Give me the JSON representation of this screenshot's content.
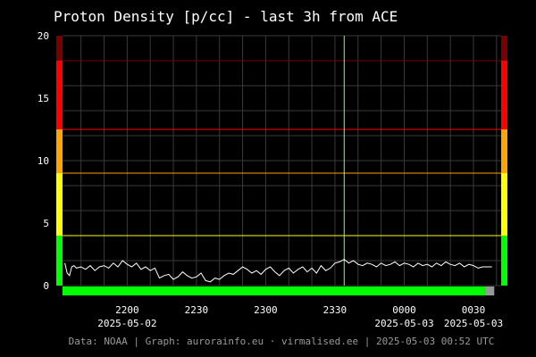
{
  "colors": {
    "background": "#000000",
    "grid": "#3a3a3a",
    "line": "#ffffff",
    "now_marker": "#7dff7d",
    "green": "#00ff00",
    "yellow": "#ffff00",
    "orange": "#ffa500",
    "red": "#ff0000",
    "dark_red": "#7a0000",
    "gap": "#999999"
  },
  "chart_data": {
    "type": "line",
    "title": "Proton Density [p/cc] - last 3h from ACE",
    "ylim": [
      0,
      20
    ],
    "y_ticks": [
      0,
      5,
      10,
      15,
      20
    ],
    "x_range_minutes": [
      -28,
      162
    ],
    "x_ticks": [
      {
        "minute": 0,
        "label": "2200",
        "date": "2025-05-02"
      },
      {
        "minute": 30,
        "label": "2230",
        "date": ""
      },
      {
        "minute": 60,
        "label": "2300",
        "date": ""
      },
      {
        "minute": 90,
        "label": "2330",
        "date": ""
      },
      {
        "minute": 120,
        "label": "0000",
        "date": "2025-05-03"
      },
      {
        "minute": 150,
        "label": "0030",
        "date": "2025-05-03"
      }
    ],
    "now_minute": 94,
    "thresholds": [
      {
        "value": 4,
        "color": "#ffff00"
      },
      {
        "value": 9,
        "color": "#ffa500"
      },
      {
        "value": 12.5,
        "color": "#ff0000"
      },
      {
        "value": 18,
        "color": "#7a0000"
      }
    ],
    "side_bands": [
      {
        "from": 0,
        "to": 4,
        "color": "#00ff00"
      },
      {
        "from": 4,
        "to": 9,
        "color": "#ffff00"
      },
      {
        "from": 9,
        "to": 12.5,
        "color": "#ffa500"
      },
      {
        "from": 12.5,
        "to": 18,
        "color": "#ff0000"
      },
      {
        "from": 18,
        "to": 20,
        "color": "#7a0000"
      }
    ],
    "data_bar": [
      {
        "from": -28,
        "to": 155,
        "color": "#00ff00"
      },
      {
        "from": 155,
        "to": 159,
        "color": "#999999"
      }
    ],
    "series": [
      {
        "x": [
          -27,
          -26,
          -25,
          -24,
          -23,
          -22,
          -20,
          -18,
          -16,
          -14,
          -12,
          -10,
          -8,
          -6,
          -4,
          -2,
          0,
          2,
          4,
          6,
          8,
          10,
          12,
          14,
          16,
          18,
          20,
          22,
          24,
          26,
          28,
          30,
          32,
          34,
          36,
          38,
          40,
          42,
          44,
          46,
          48,
          50,
          52,
          54,
          56,
          58,
          60,
          62,
          64,
          66,
          68,
          70,
          72,
          74,
          76,
          78,
          80,
          82,
          84,
          86,
          88,
          90,
          92,
          94,
          96,
          98,
          100,
          102,
          104,
          106,
          108,
          110,
          112,
          114,
          116,
          118,
          120,
          122,
          124,
          126,
          128,
          130,
          132,
          134,
          136,
          138,
          140,
          142,
          144,
          146,
          148,
          150,
          152,
          154,
          156,
          158
        ],
        "y": [
          1.8,
          1.0,
          0.8,
          1.5,
          1.6,
          1.4,
          1.5,
          1.3,
          1.6,
          1.2,
          1.5,
          1.6,
          1.4,
          1.8,
          1.5,
          2.0,
          1.7,
          1.5,
          1.8,
          1.3,
          1.5,
          1.2,
          1.4,
          0.6,
          0.8,
          0.9,
          0.5,
          0.7,
          1.1,
          0.8,
          0.6,
          0.7,
          1.0,
          0.4,
          0.3,
          0.6,
          0.5,
          0.8,
          1.0,
          0.9,
          1.2,
          1.5,
          1.3,
          1.0,
          1.2,
          0.9,
          1.3,
          1.5,
          1.1,
          0.8,
          1.2,
          1.4,
          1.0,
          1.3,
          1.5,
          1.1,
          1.4,
          1.0,
          1.6,
          1.2,
          1.4,
          1.8,
          1.9,
          2.1,
          1.8,
          2.0,
          1.7,
          1.6,
          1.8,
          1.7,
          1.5,
          1.8,
          1.6,
          1.7,
          1.9,
          1.6,
          1.8,
          1.7,
          1.5,
          1.8,
          1.6,
          1.7,
          1.5,
          1.8,
          1.6,
          1.9,
          1.7,
          1.6,
          1.8,
          1.5,
          1.7,
          1.6,
          1.4,
          1.5,
          1.5,
          1.5
        ]
      }
    ]
  },
  "footer": "Data: NOAA | Graph: aurorainfo.eu · virmalised.ee | 2025-05-03 00:52 UTC"
}
